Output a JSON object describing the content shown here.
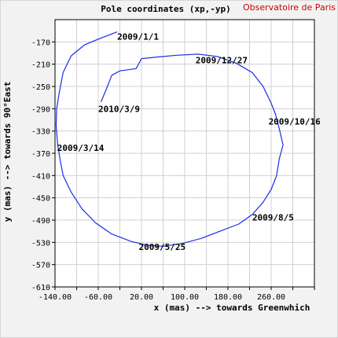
{
  "colors": {
    "background": "#f2f2f2",
    "plot_background": "#ffffff",
    "grid": "#d0d0d0",
    "axis": "#000000",
    "series": "#1a2ee6",
    "credit": "#cc0000"
  },
  "credit": "Observatoire de Paris",
  "chart_data": {
    "type": "line",
    "title": "Pole coordinates (xp,-yp)",
    "xlabel": "x (mas) --> towards Greenwhich",
    "ylabel": "y (mas) --> towards 90°East",
    "xlim": [
      -140,
      340
    ],
    "ylim": [
      -610,
      -130
    ],
    "grid": true,
    "x_ticks": [
      -140,
      -100,
      -60,
      -20,
      20,
      60,
      100,
      140,
      180,
      220,
      260,
      300,
      340
    ],
    "x_tick_labels": [
      "-140.00",
      "",
      "-60.00",
      "",
      "20.00",
      "",
      "100.00",
      "",
      "180.00",
      "",
      "260.00",
      "",
      ""
    ],
    "y_ticks": [
      -170,
      -210,
      -250,
      -290,
      -330,
      -370,
      -410,
      -450,
      -490,
      -530,
      -570,
      -610
    ],
    "y_tick_labels": [
      "-170",
      "-210",
      "-250",
      "-290",
      "-330",
      "-370",
      "-410",
      "-450",
      "-490",
      "-530",
      "-570",
      "-610"
    ],
    "series": [
      {
        "points": [
          [
            -25,
            -152
          ],
          [
            -55,
            -163
          ],
          [
            -85,
            -175
          ],
          [
            -110,
            -195
          ],
          [
            -125,
            -225
          ],
          [
            -132,
            -260
          ],
          [
            -137,
            -290
          ],
          [
            -138,
            -320
          ],
          [
            -135,
            -355
          ],
          [
            -130,
            -385
          ],
          [
            -125,
            -410
          ],
          [
            -110,
            -440
          ],
          [
            -90,
            -470
          ],
          [
            -65,
            -495
          ],
          [
            -35,
            -515
          ],
          [
            0,
            -528
          ],
          [
            30,
            -535
          ],
          [
            60,
            -537
          ],
          [
            95,
            -532
          ],
          [
            130,
            -523
          ],
          [
            165,
            -510
          ],
          [
            200,
            -497
          ],
          [
            225,
            -480
          ],
          [
            245,
            -458
          ],
          [
            260,
            -435
          ],
          [
            270,
            -410
          ],
          [
            275,
            -380
          ],
          [
            282,
            -355
          ],
          [
            276,
            -330
          ],
          [
            268,
            -300
          ],
          [
            260,
            -280
          ],
          [
            245,
            -250
          ],
          [
            225,
            -225
          ],
          [
            195,
            -208
          ],
          [
            160,
            -196
          ],
          [
            125,
            -192
          ],
          [
            85,
            -194
          ],
          [
            50,
            -197
          ],
          [
            20,
            -200
          ],
          [
            10,
            -218
          ],
          [
            -20,
            -222
          ],
          [
            -35,
            -230
          ],
          [
            -45,
            -255
          ],
          [
            -55,
            -278
          ]
        ]
      }
    ],
    "annotations": [
      {
        "text": "2009/1/1",
        "x": -25,
        "y": -160
      },
      {
        "text": "2009/12/27",
        "x": 120,
        "y": -203
      },
      {
        "text": "2010/3/9",
        "x": -60,
        "y": -290
      },
      {
        "text": "2009/10/16",
        "x": 255,
        "y": -313
      },
      {
        "text": "2009/3/14",
        "x": -136,
        "y": -360
      },
      {
        "text": "2009/8/5",
        "x": 225,
        "y": -485
      },
      {
        "text": "2009/5/25",
        "x": 15,
        "y": -538
      }
    ]
  }
}
